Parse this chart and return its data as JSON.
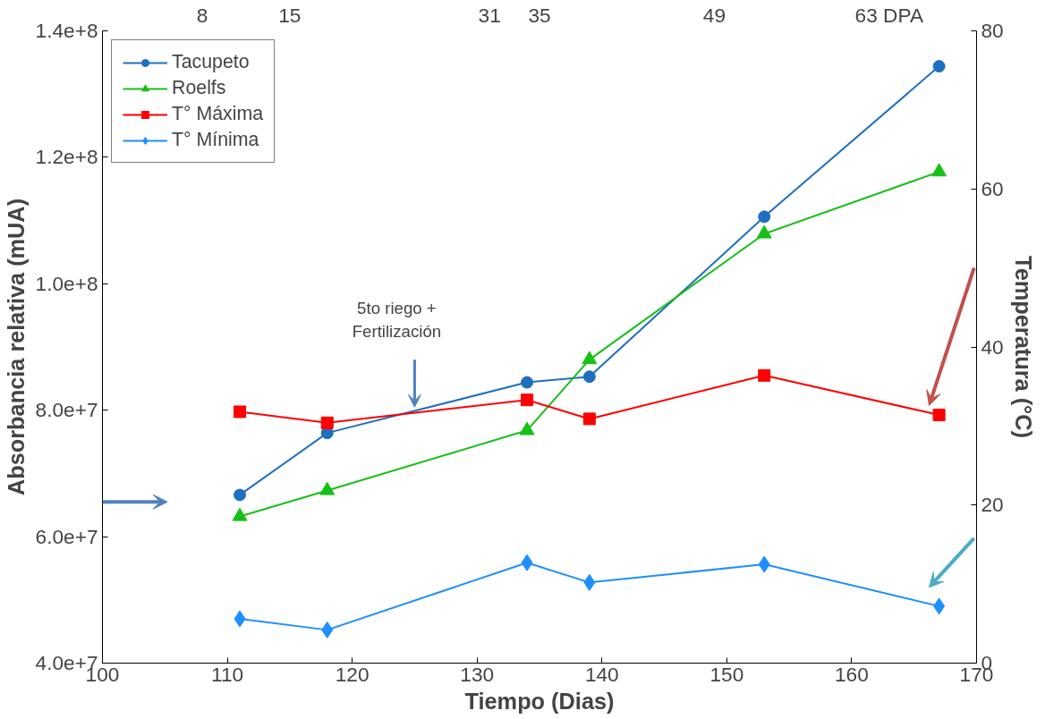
{
  "chart_data": {
    "type": "line",
    "xlabel": "Tiempo (Dias)",
    "ylabel": "Absorbancia relativa (mUA)",
    "y2label": "Temperatura (°C)",
    "x": [
      111,
      118,
      134,
      139,
      153,
      167
    ],
    "xlim": [
      100,
      170
    ],
    "xticks": [
      100,
      110,
      120,
      130,
      140,
      150,
      160,
      170
    ],
    "ylim": [
      40000000,
      140000000
    ],
    "yticks": [
      {
        "value": 40000000,
        "label": "4.0e+7"
      },
      {
        "value": 60000000,
        "label": "6.0e+7"
      },
      {
        "value": 80000000,
        "label": "8.0e+7"
      },
      {
        "value": 100000000,
        "label": "1.0e+8"
      },
      {
        "value": 120000000,
        "label": "1.2e+8"
      },
      {
        "value": 140000000,
        "label": "1.4e+8"
      }
    ],
    "y2lim": [
      0,
      80
    ],
    "y2ticks": [
      0,
      20,
      40,
      60,
      80
    ],
    "x2lim": [
      0,
      70
    ],
    "x2ticks": [
      8,
      15,
      31,
      35,
      49,
      {
        "value": 63,
        "label": "63 DPA"
      }
    ],
    "series": [
      {
        "name": "Tacupeto",
        "color": "#1f6fc0",
        "marker": "circle",
        "values": [
          66600000,
          76400000,
          84400000,
          85300000,
          110600000,
          134400000
        ]
      },
      {
        "name": "Roelfs",
        "color": "#16c016",
        "marker": "triangle",
        "values": [
          63200000,
          67300000,
          76800000,
          88000000,
          107900000,
          117700000
        ]
      },
      {
        "name": "T° Máxima",
        "color": "#ff0000",
        "marker": "square",
        "axis": "y2",
        "values": [
          31.8,
          30.4,
          33.3,
          30.9,
          36.4,
          31.4
        ]
      },
      {
        "name": "T° Mínima",
        "color": "#1e8fff",
        "marker": "diamond",
        "axis": "y2",
        "values": [
          5.6,
          4.2,
          12.7,
          10.2,
          12.5,
          7.2
        ]
      }
    ],
    "annotations": [
      {
        "text": "5to riego +\nFertilización",
        "x": 125,
        "y": 80500000
      }
    ],
    "legend": "top left",
    "grid": false
  }
}
